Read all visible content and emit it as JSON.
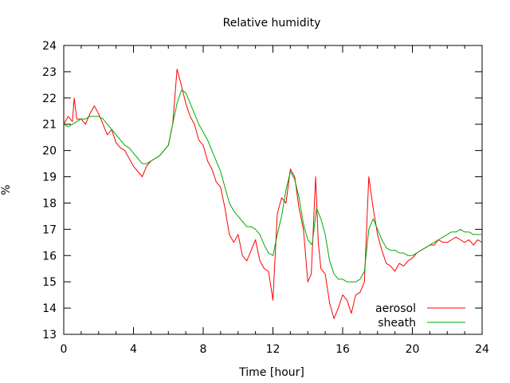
{
  "chart_data": {
    "type": "line",
    "title": "Relative humidity",
    "xlabel": "Time [hour]",
    "ylabel": "%",
    "xlim": [
      0,
      24
    ],
    "ylim": [
      13,
      24
    ],
    "x_ticks": [
      0,
      4,
      8,
      12,
      16,
      20,
      24
    ],
    "y_ticks": [
      13,
      14,
      15,
      16,
      17,
      18,
      19,
      20,
      21,
      22,
      23,
      24
    ],
    "x_minor_step": 1,
    "grid": false,
    "legend_position": "bottom-right",
    "series": [
      {
        "name": "aerosol",
        "color": "#ff0000",
        "points": [
          [
            0.0,
            21.0
          ],
          [
            0.25,
            21.3
          ],
          [
            0.5,
            21.1
          ],
          [
            0.6,
            22.0
          ],
          [
            0.75,
            21.2
          ],
          [
            1.0,
            21.2
          ],
          [
            1.25,
            21.0
          ],
          [
            1.5,
            21.4
          ],
          [
            1.75,
            21.7
          ],
          [
            2.0,
            21.4
          ],
          [
            2.25,
            21.0
          ],
          [
            2.5,
            20.6
          ],
          [
            2.75,
            20.8
          ],
          [
            3.0,
            20.3
          ],
          [
            3.25,
            20.1
          ],
          [
            3.5,
            20.0
          ],
          [
            3.75,
            19.7
          ],
          [
            4.0,
            19.4
          ],
          [
            4.25,
            19.2
          ],
          [
            4.5,
            19.0
          ],
          [
            4.75,
            19.4
          ],
          [
            5.0,
            19.6
          ],
          [
            5.25,
            19.7
          ],
          [
            5.5,
            19.8
          ],
          [
            5.75,
            20.0
          ],
          [
            6.0,
            20.2
          ],
          [
            6.25,
            21.0
          ],
          [
            6.5,
            23.1
          ],
          [
            6.7,
            22.6
          ],
          [
            7.0,
            21.8
          ],
          [
            7.25,
            21.3
          ],
          [
            7.5,
            21.0
          ],
          [
            7.75,
            20.4
          ],
          [
            8.0,
            20.2
          ],
          [
            8.25,
            19.6
          ],
          [
            8.5,
            19.3
          ],
          [
            8.75,
            18.8
          ],
          [
            9.0,
            18.6
          ],
          [
            9.25,
            17.8
          ],
          [
            9.5,
            16.8
          ],
          [
            9.75,
            16.5
          ],
          [
            10.0,
            16.8
          ],
          [
            10.25,
            16.0
          ],
          [
            10.5,
            15.8
          ],
          [
            10.75,
            16.2
          ],
          [
            11.0,
            16.6
          ],
          [
            11.25,
            15.8
          ],
          [
            11.5,
            15.5
          ],
          [
            11.75,
            15.4
          ],
          [
            12.0,
            14.3
          ],
          [
            12.25,
            17.6
          ],
          [
            12.5,
            18.2
          ],
          [
            12.75,
            18.0
          ],
          [
            13.0,
            19.3
          ],
          [
            13.25,
            19.0
          ],
          [
            13.5,
            17.8
          ],
          [
            13.75,
            17.0
          ],
          [
            14.0,
            15.0
          ],
          [
            14.2,
            15.3
          ],
          [
            14.45,
            19.0
          ],
          [
            14.6,
            16.5
          ],
          [
            14.75,
            15.5
          ],
          [
            15.0,
            15.3
          ],
          [
            15.25,
            14.2
          ],
          [
            15.5,
            13.6
          ],
          [
            15.75,
            14.0
          ],
          [
            16.0,
            14.5
          ],
          [
            16.25,
            14.3
          ],
          [
            16.5,
            13.8
          ],
          [
            16.75,
            14.5
          ],
          [
            17.0,
            14.6
          ],
          [
            17.25,
            15.0
          ],
          [
            17.5,
            19.0
          ],
          [
            17.75,
            17.8
          ],
          [
            18.0,
            16.8
          ],
          [
            18.25,
            16.2
          ],
          [
            18.5,
            15.7
          ],
          [
            18.75,
            15.6
          ],
          [
            19.0,
            15.4
          ],
          [
            19.25,
            15.7
          ],
          [
            19.5,
            15.6
          ],
          [
            19.75,
            15.8
          ],
          [
            20.0,
            15.9
          ],
          [
            20.25,
            16.1
          ],
          [
            20.5,
            16.2
          ],
          [
            20.75,
            16.3
          ],
          [
            21.0,
            16.4
          ],
          [
            21.25,
            16.4
          ],
          [
            21.5,
            16.6
          ],
          [
            21.75,
            16.5
          ],
          [
            22.0,
            16.5
          ],
          [
            22.25,
            16.6
          ],
          [
            22.5,
            16.7
          ],
          [
            22.75,
            16.6
          ],
          [
            23.0,
            16.5
          ],
          [
            23.25,
            16.6
          ],
          [
            23.5,
            16.4
          ],
          [
            23.75,
            16.6
          ],
          [
            24.0,
            16.5
          ]
        ]
      },
      {
        "name": "sheath",
        "color": "#00aa00",
        "points": [
          [
            0.0,
            21.0
          ],
          [
            0.25,
            20.9
          ],
          [
            0.5,
            21.0
          ],
          [
            0.75,
            21.1
          ],
          [
            1.0,
            21.2
          ],
          [
            1.25,
            21.2
          ],
          [
            1.5,
            21.3
          ],
          [
            1.75,
            21.3
          ],
          [
            2.0,
            21.3
          ],
          [
            2.25,
            21.2
          ],
          [
            2.5,
            21.0
          ],
          [
            2.75,
            20.8
          ],
          [
            3.0,
            20.6
          ],
          [
            3.25,
            20.4
          ],
          [
            3.5,
            20.2
          ],
          [
            3.75,
            20.1
          ],
          [
            4.0,
            19.9
          ],
          [
            4.25,
            19.7
          ],
          [
            4.5,
            19.5
          ],
          [
            4.75,
            19.5
          ],
          [
            5.0,
            19.6
          ],
          [
            5.25,
            19.7
          ],
          [
            5.5,
            19.8
          ],
          [
            5.75,
            20.0
          ],
          [
            6.0,
            20.2
          ],
          [
            6.25,
            21.0
          ],
          [
            6.5,
            21.8
          ],
          [
            6.75,
            22.3
          ],
          [
            7.0,
            22.2
          ],
          [
            7.25,
            21.8
          ],
          [
            7.5,
            21.4
          ],
          [
            7.75,
            21.0
          ],
          [
            8.0,
            20.7
          ],
          [
            8.25,
            20.4
          ],
          [
            8.5,
            20.0
          ],
          [
            8.75,
            19.6
          ],
          [
            9.0,
            19.2
          ],
          [
            9.25,
            18.6
          ],
          [
            9.5,
            18.0
          ],
          [
            9.75,
            17.7
          ],
          [
            10.0,
            17.5
          ],
          [
            10.25,
            17.3
          ],
          [
            10.5,
            17.1
          ],
          [
            10.75,
            17.1
          ],
          [
            11.0,
            17.0
          ],
          [
            11.25,
            16.8
          ],
          [
            11.5,
            16.4
          ],
          [
            11.75,
            16.1
          ],
          [
            12.0,
            16.0
          ],
          [
            12.25,
            16.8
          ],
          [
            12.5,
            17.5
          ],
          [
            12.75,
            18.5
          ],
          [
            13.0,
            19.2
          ],
          [
            13.25,
            18.9
          ],
          [
            13.5,
            18.2
          ],
          [
            13.75,
            17.2
          ],
          [
            14.0,
            16.6
          ],
          [
            14.25,
            16.4
          ],
          [
            14.5,
            17.8
          ],
          [
            14.75,
            17.4
          ],
          [
            15.0,
            16.8
          ],
          [
            15.25,
            15.8
          ],
          [
            15.5,
            15.3
          ],
          [
            15.75,
            15.1
          ],
          [
            16.0,
            15.1
          ],
          [
            16.25,
            15.0
          ],
          [
            16.5,
            15.0
          ],
          [
            16.75,
            15.0
          ],
          [
            17.0,
            15.1
          ],
          [
            17.25,
            15.4
          ],
          [
            17.5,
            17.0
          ],
          [
            17.75,
            17.4
          ],
          [
            18.0,
            17.0
          ],
          [
            18.25,
            16.6
          ],
          [
            18.5,
            16.3
          ],
          [
            18.75,
            16.2
          ],
          [
            19.0,
            16.2
          ],
          [
            19.25,
            16.1
          ],
          [
            19.5,
            16.1
          ],
          [
            19.75,
            16.0
          ],
          [
            20.0,
            16.0
          ],
          [
            20.25,
            16.1
          ],
          [
            20.5,
            16.2
          ],
          [
            20.75,
            16.3
          ],
          [
            21.0,
            16.4
          ],
          [
            21.25,
            16.5
          ],
          [
            21.5,
            16.6
          ],
          [
            21.75,
            16.7
          ],
          [
            22.0,
            16.8
          ],
          [
            22.25,
            16.9
          ],
          [
            22.5,
            16.9
          ],
          [
            22.75,
            17.0
          ],
          [
            23.0,
            16.9
          ],
          [
            23.25,
            16.9
          ],
          [
            23.5,
            16.8
          ],
          [
            23.75,
            16.8
          ],
          [
            24.0,
            16.8
          ]
        ]
      }
    ]
  }
}
